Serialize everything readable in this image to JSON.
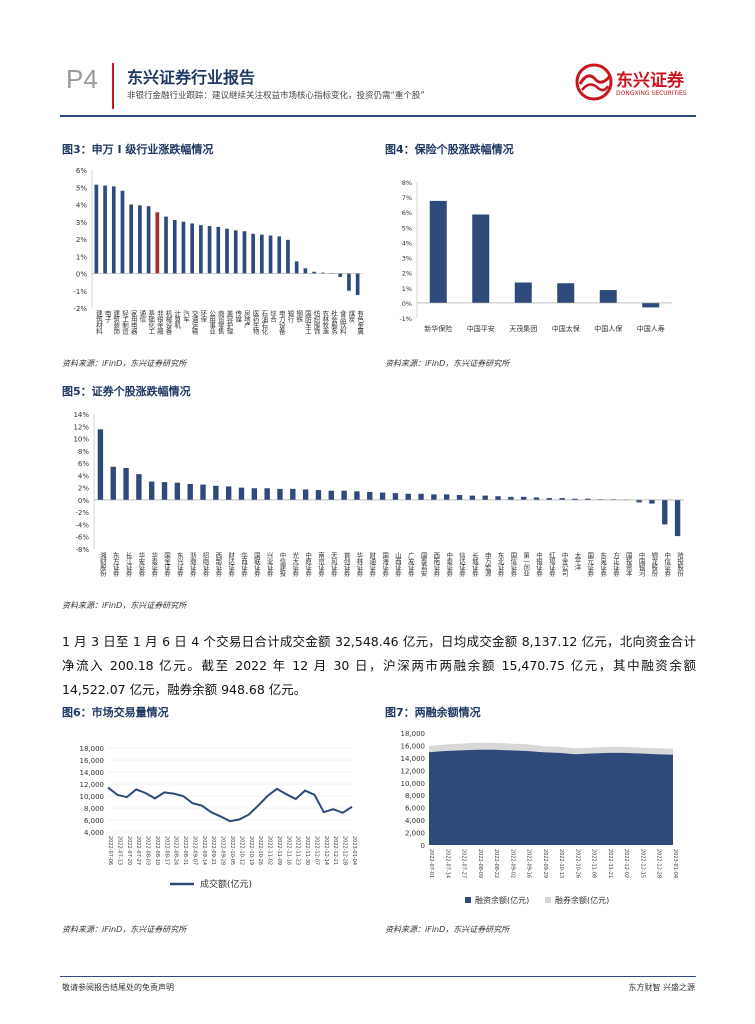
{
  "header": {
    "page_no": "P4",
    "company_title": "东兴证券行业报告",
    "subtitle": "非银行金融行业跟踪：建议继续关注权益市场核心指标变化，投资仍需“重个股”",
    "logo_text": "东兴证券",
    "logo_sub": "DONGXING SECURITIES"
  },
  "source_text": "资料来源：iFinD，东兴证券研究所",
  "paragraph": "1 月 3 日至 1 月 6 日 4 个交易日合计成交金额 32,548.46 亿元，日均成交金额 8,137.12 亿元，北向资金合计净流入 200.18 亿元。截至 2022 年 12 月 30 日，沪深两市两融余额 15,470.75 亿元，其中融资余额 14,522.07 亿元，融券余额 948.68 亿元。",
  "footer": {
    "left": "敬请参阅报告结尾处的免责声明",
    "right": "东方财智 兴盛之源"
  },
  "colors": {
    "bar": "#2d4a7a",
    "highlight": "#a52a2a",
    "grey": "#d8d8d8"
  },
  "chart_data": [
    {
      "id": "fig3",
      "type": "bar",
      "title": "图3：申万 I 级行业涨跌幅情况",
      "ylim": [
        -2,
        6
      ],
      "yticks": [
        "-2%",
        "-1%",
        "0%",
        "1%",
        "2%",
        "3%",
        "4%",
        "5%",
        "6%"
      ],
      "categories": [
        "建筑材料",
        "电子",
        "建筑装饰",
        "轻工制造",
        "家用电器",
        "通信",
        "基础化工",
        "非银金融",
        "机械设备",
        "计算机",
        "汽车",
        "交通运输",
        "环保",
        "公用事业",
        "商贸零售",
        "美容护理",
        "传媒",
        "房地产",
        "医药生物",
        "石油石化",
        "综合",
        "电力设备",
        "银行",
        "钢铁",
        "国防军工",
        "纺织服饰",
        "农林牧渔",
        "社会服务",
        "食品饮料",
        "煤炭",
        "有色金属"
      ],
      "values": [
        5.15,
        5.1,
        5.05,
        4.8,
        4.0,
        3.95,
        3.9,
        3.55,
        3.3,
        3.1,
        3.0,
        2.9,
        2.8,
        2.75,
        2.7,
        2.6,
        2.5,
        2.45,
        2.3,
        2.25,
        2.2,
        2.15,
        1.95,
        0.7,
        0.3,
        0.1,
        0.05,
        0.02,
        -0.2,
        -1.0,
        -1.25
      ],
      "highlight_index": 7
    },
    {
      "id": "fig4",
      "type": "bar",
      "title": "图4：保险个股涨跌幅情况",
      "ylim": [
        -1,
        8
      ],
      "yticks": [
        "-1%",
        "0%",
        "1%",
        "2%",
        "3%",
        "4%",
        "5%",
        "6%",
        "7%",
        "8%"
      ],
      "categories": [
        "新华保险",
        "中国平安",
        "天茂集团",
        "中国太保",
        "中国人保",
        "中国人寿"
      ],
      "values": [
        6.75,
        5.85,
        1.35,
        1.3,
        0.85,
        -0.3
      ]
    },
    {
      "id": "fig5",
      "type": "bar",
      "title": "图5：证券个股涨跌幅情况",
      "ylim": [
        -8,
        14
      ],
      "yticks": [
        "-8%",
        "-6%",
        "-4%",
        "-2%",
        "0%",
        "2%",
        "4%",
        "6%",
        "8%",
        "10%",
        "12%",
        "14%"
      ],
      "categories": [
        "湘财股份",
        "东方证券",
        "长江证券",
        "华安证券",
        "华泰证券",
        "国金证券",
        "东兴证券",
        "浙商证券",
        "招商证券",
        "西部证券",
        "财达证券",
        "华西证券",
        "国联证券",
        "兴业证券",
        "中信建投",
        "光大证券",
        "中原证券",
        "南京证券",
        "天风证券",
        "首创证券",
        "华林证券",
        "财通证券",
        "国海证券",
        "山西证券",
        "广发证券",
        "国泰君安",
        "西南证券",
        "中泰证券",
        "信达证券",
        "长城证券",
        "申万宏源",
        "东北证券",
        "国信证券",
        "第一创业",
        "中银证券",
        "红塔证券",
        "中金公司",
        "太平洋",
        "国元证券",
        "东吴证券",
        "方正证券",
        "国投资本",
        "中国银河",
        "锦龙股份",
        "中信证券",
        "哈投股份"
      ],
      "values": [
        11.5,
        5.4,
        5.2,
        4.2,
        3.0,
        2.9,
        2.8,
        2.6,
        2.5,
        2.3,
        2.2,
        2.0,
        1.9,
        1.9,
        1.8,
        1.8,
        1.7,
        1.6,
        1.5,
        1.5,
        1.4,
        1.3,
        1.2,
        1.1,
        1.0,
        1.0,
        0.9,
        0.9,
        0.8,
        0.7,
        0.7,
        0.6,
        0.5,
        0.5,
        0.4,
        0.3,
        0.3,
        0.2,
        0.2,
        0.1,
        0.1,
        0.05,
        -0.4,
        -0.6,
        -4.0,
        -5.9
      ]
    },
    {
      "id": "fig6",
      "type": "line",
      "title": "图6：市场交易量情况",
      "ylim": [
        4000,
        18000
      ],
      "yticks": [
        "4,000",
        "6,000",
        "8,000",
        "10,000",
        "12,000",
        "14,000",
        "16,000",
        "18,000"
      ],
      "x": [
        "2022-07-06",
        "2022-07-13",
        "2022-07-20",
        "2022-07-27",
        "2022-08-03",
        "2022-08-10",
        "2022-08-17",
        "2022-08-24",
        "2022-08-31",
        "2022-09-07",
        "2022-09-14",
        "2022-09-21",
        "2022-09-28",
        "2022-10-05",
        "2022-10-12",
        "2022-10-19",
        "2022-10-26",
        "2022-11-02",
        "2022-11-09",
        "2022-11-16",
        "2022-11-23",
        "2022-11-30",
        "2022-12-07",
        "2022-12-14",
        "2022-12-21",
        "2022-12-28",
        "2023-01-04"
      ],
      "series": [
        {
          "name": "成交额(亿元)",
          "values": [
            11400,
            10200,
            9800,
            11100,
            10500,
            9600,
            10600,
            10400,
            10000,
            8800,
            8400,
            7300,
            6600,
            5800,
            6100,
            6900,
            8400,
            10000,
            11200,
            10300,
            9500,
            10900,
            10200,
            7300,
            7800,
            7200,
            8200
          ]
        }
      ]
    },
    {
      "id": "fig7",
      "type": "area",
      "title": "图7：两融余额情况",
      "ylim": [
        0,
        18000
      ],
      "yticks": [
        "0",
        "2,000",
        "4,000",
        "6,000",
        "8,000",
        "10,000",
        "12,000",
        "14,000",
        "16,000",
        "18,000"
      ],
      "x": [
        "2022-07-01",
        "2022-07-14",
        "2022-07-27",
        "2022-08-09",
        "2022-08-22",
        "2022-09-02",
        "2022-09-16",
        "2022-09-29",
        "2022-10-13",
        "2022-10-26",
        "2022-11-08",
        "2022-11-21",
        "2022-12-02",
        "2022-12-15",
        "2022-12-28",
        "2023-01-04"
      ],
      "series": [
        {
          "name": "融资余额(亿元)",
          "values": [
            14900,
            15100,
            15200,
            15300,
            15300,
            15200,
            15100,
            14900,
            14800,
            14600,
            14700,
            14800,
            14800,
            14700,
            14600,
            14500
          ]
        },
        {
          "name": "融券余额(亿元)",
          "values": [
            1000,
            1050,
            1100,
            1150,
            1120,
            1100,
            1080,
            1000,
            980,
            950,
            960,
            970,
            970,
            960,
            950,
            950
          ]
        }
      ]
    }
  ]
}
